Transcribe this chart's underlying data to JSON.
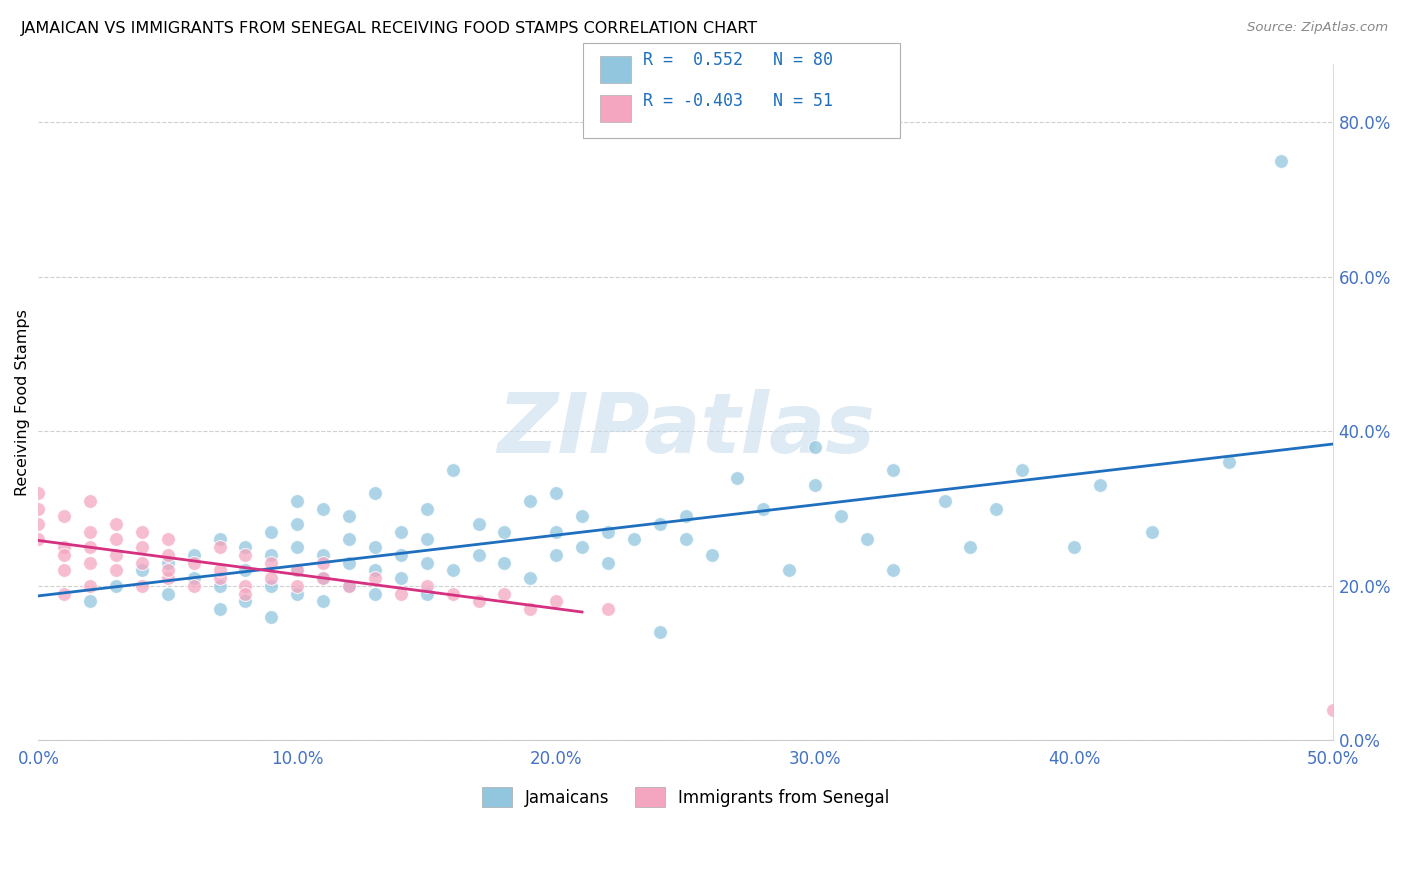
{
  "title": "JAMAICAN VS IMMIGRANTS FROM SENEGAL RECEIVING FOOD STAMPS CORRELATION CHART",
  "source": "Source: ZipAtlas.com",
  "legend_blue": "Jamaicans",
  "legend_pink": "Immigrants from Senegal",
  "ylabel": "Receiving Food Stamps",
  "xlim": [
    0.0,
    0.5
  ],
  "ylim": [
    0.0,
    0.875
  ],
  "xtick_vals": [
    0.0,
    0.1,
    0.2,
    0.3,
    0.4,
    0.5
  ],
  "ytick_vals": [
    0.0,
    0.2,
    0.4,
    0.6,
    0.8
  ],
  "R_blue": 0.552,
  "N_blue": 80,
  "R_pink": -0.403,
  "N_pink": 51,
  "blue_scatter": "#92c5de",
  "pink_scatter": "#f4a6c0",
  "blue_line": "#1f6fbf",
  "pink_line": "#d63080",
  "legend_box_bg": "#f8f8f8",
  "legend_box_edge": "#b0b0b0",
  "watermark_color": "#c8dced",
  "grid_color": "#d0d0d0",
  "tick_color": "#4472c4",
  "background": "#ffffff",
  "blue_x": [
    0.02,
    0.03,
    0.04,
    0.05,
    0.05,
    0.06,
    0.06,
    0.07,
    0.07,
    0.07,
    0.08,
    0.08,
    0.08,
    0.09,
    0.09,
    0.09,
    0.09,
    0.1,
    0.1,
    0.1,
    0.1,
    0.1,
    0.11,
    0.11,
    0.11,
    0.11,
    0.12,
    0.12,
    0.12,
    0.12,
    0.13,
    0.13,
    0.13,
    0.13,
    0.14,
    0.14,
    0.14,
    0.15,
    0.15,
    0.15,
    0.15,
    0.16,
    0.16,
    0.17,
    0.17,
    0.18,
    0.18,
    0.19,
    0.19,
    0.2,
    0.2,
    0.2,
    0.21,
    0.21,
    0.22,
    0.22,
    0.23,
    0.24,
    0.24,
    0.25,
    0.25,
    0.26,
    0.27,
    0.28,
    0.29,
    0.3,
    0.3,
    0.31,
    0.32,
    0.33,
    0.33,
    0.35,
    0.36,
    0.37,
    0.38,
    0.4,
    0.41,
    0.43,
    0.46,
    0.48
  ],
  "blue_y": [
    0.18,
    0.2,
    0.22,
    0.19,
    0.23,
    0.21,
    0.24,
    0.17,
    0.2,
    0.26,
    0.18,
    0.22,
    0.25,
    0.16,
    0.2,
    0.24,
    0.27,
    0.19,
    0.22,
    0.25,
    0.28,
    0.31,
    0.18,
    0.21,
    0.24,
    0.3,
    0.2,
    0.23,
    0.26,
    0.29,
    0.19,
    0.22,
    0.25,
    0.32,
    0.21,
    0.24,
    0.27,
    0.19,
    0.23,
    0.26,
    0.3,
    0.22,
    0.35,
    0.24,
    0.28,
    0.23,
    0.27,
    0.21,
    0.31,
    0.24,
    0.27,
    0.32,
    0.25,
    0.29,
    0.23,
    0.27,
    0.26,
    0.28,
    0.14,
    0.26,
    0.29,
    0.24,
    0.34,
    0.3,
    0.22,
    0.33,
    0.38,
    0.29,
    0.26,
    0.35,
    0.22,
    0.31,
    0.25,
    0.3,
    0.35,
    0.25,
    0.33,
    0.27,
    0.36,
    0.75
  ],
  "pink_x": [
    0.0,
    0.0,
    0.0,
    0.0,
    0.01,
    0.01,
    0.01,
    0.01,
    0.01,
    0.02,
    0.02,
    0.02,
    0.02,
    0.02,
    0.03,
    0.03,
    0.03,
    0.03,
    0.04,
    0.04,
    0.04,
    0.04,
    0.05,
    0.05,
    0.05,
    0.05,
    0.06,
    0.06,
    0.07,
    0.07,
    0.07,
    0.08,
    0.08,
    0.08,
    0.09,
    0.09,
    0.1,
    0.1,
    0.11,
    0.11,
    0.12,
    0.13,
    0.14,
    0.15,
    0.16,
    0.17,
    0.18,
    0.19,
    0.2,
    0.22,
    0.5
  ],
  "pink_y": [
    0.28,
    0.3,
    0.32,
    0.26,
    0.25,
    0.22,
    0.19,
    0.29,
    0.24,
    0.27,
    0.23,
    0.2,
    0.25,
    0.31,
    0.26,
    0.22,
    0.28,
    0.24,
    0.23,
    0.27,
    0.2,
    0.25,
    0.24,
    0.21,
    0.26,
    0.22,
    0.23,
    0.2,
    0.21,
    0.25,
    0.22,
    0.2,
    0.24,
    0.19,
    0.21,
    0.23,
    0.2,
    0.22,
    0.21,
    0.23,
    0.2,
    0.21,
    0.19,
    0.2,
    0.19,
    0.18,
    0.19,
    0.17,
    0.18,
    0.17,
    0.04
  ]
}
